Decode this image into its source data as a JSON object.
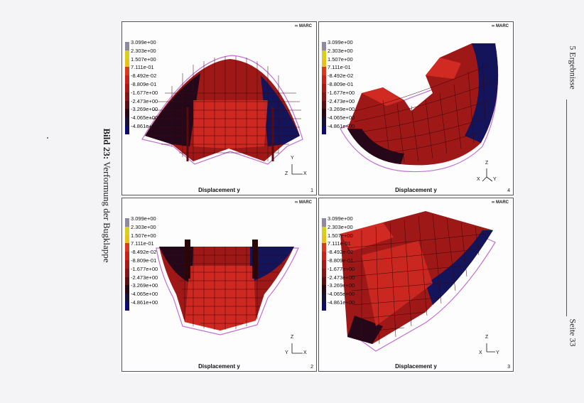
{
  "caption": {
    "label": "Bild 23:",
    "text": " Verformung der Bugklappe"
  },
  "header": {
    "section": "5 Ergebnisse",
    "page": "Seite 33"
  },
  "legend": {
    "values": [
      "3.099e+00",
      "2.303e+00",
      "1.507e+00",
      "7.111e-01",
      "-8.492e-02",
      "-8.809e-01",
      "-1.677e+00",
      "-2.473e+00",
      "-3.269e+00",
      "-4.065e+00",
      "-4.861e+00"
    ],
    "colors": [
      "#8e8aa0",
      "#d8d020",
      "#e8c21a",
      "#d83a1e",
      "#c8221c",
      "#a81a18",
      "#861414",
      "#5a0e10",
      "#2a0812",
      "#151038",
      "#0a0a70"
    ]
  },
  "logo": "∞ MARC",
  "panels": [
    {
      "id": "1",
      "label": "Displacement y",
      "axes": [
        "Y",
        "Z",
        "X"
      ]
    },
    {
      "id": "4",
      "label": "Displacement y",
      "axes": [
        "Z",
        "X",
        "Y"
      ]
    },
    {
      "id": "2",
      "label": "Displacement y",
      "axes": [
        "Z",
        "Y",
        "X"
      ]
    },
    {
      "id": "3",
      "label": "Displacement y",
      "axes": [
        "Z",
        "X",
        "Y"
      ]
    }
  ]
}
